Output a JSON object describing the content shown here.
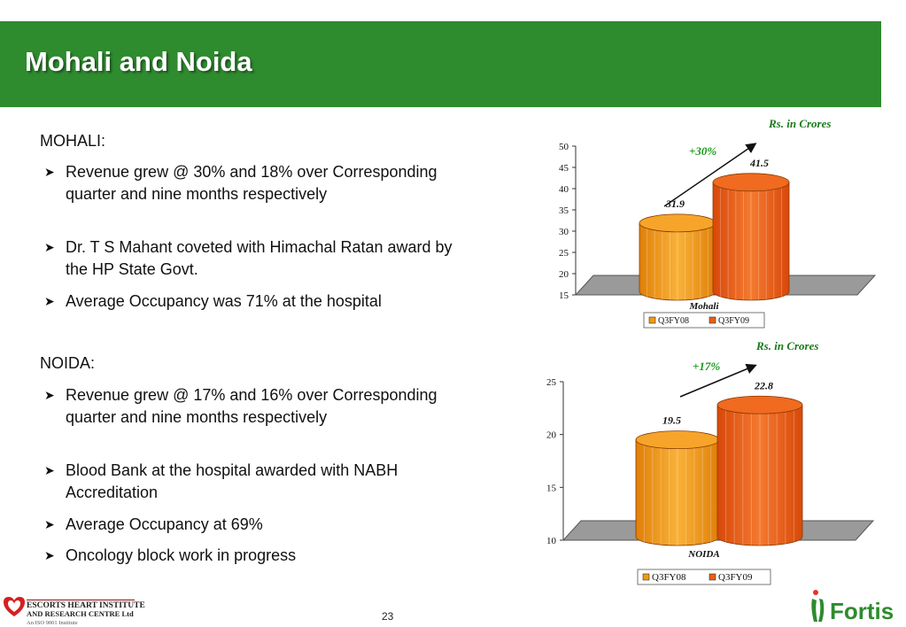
{
  "slide": {
    "title": "Mohali and Noida",
    "page_number": "23"
  },
  "mohali": {
    "heading": "MOHALI:",
    "bullets": [
      "Revenue grew @ 30% and 18% over Corresponding quarter and nine months respectively",
      "Dr. T S Mahant  coveted with Himachal Ratan award by the HP State Govt.",
      "Average Occupancy was 71% at the hospital"
    ]
  },
  "noida": {
    "heading": "NOIDA:",
    "bullets": [
      "Revenue grew @ 17% and 16% over Corresponding quarter and nine months respectively",
      "Blood Bank at the hospital awarded with NABH Accreditation",
      "Average Occupancy at 69%",
      "Oncology block work in progress"
    ]
  },
  "footer": {
    "left_logo_line1": "ESCORTS HEART INSTITUTE",
    "left_logo_line2": "AND RESEARCH CENTRE Ltd",
    "left_logo_line3": "An ISO 9001 Institute",
    "right_logo": "Fortis"
  },
  "colors": {
    "header_green": "#2e8b2e",
    "q3fy08": "#f39a12",
    "q3fy09": "#ee5d10",
    "label_green": "#1a7a1a"
  },
  "chart_data": [
    {
      "type": "bar",
      "units_note": "Rs. in Crores",
      "categories": [
        "Mohali"
      ],
      "series": [
        {
          "name": "Q3FY08",
          "values": [
            31.9
          ]
        },
        {
          "name": "Q3FY09",
          "values": [
            41.5
          ]
        }
      ],
      "value_labels": [
        "31.9",
        "41.5"
      ],
      "growth_label": "+30%",
      "ylim": [
        15,
        50
      ],
      "yticks": [
        "15",
        "20",
        "25",
        "30",
        "35",
        "40",
        "45",
        "50"
      ],
      "legend": "bottom"
    },
    {
      "type": "bar",
      "units_note": "Rs. in Crores",
      "categories": [
        "NOIDA"
      ],
      "series": [
        {
          "name": "Q3FY08",
          "values": [
            19.5
          ]
        },
        {
          "name": "Q3FY09",
          "values": [
            22.8
          ]
        }
      ],
      "value_labels": [
        "19.5",
        "22.8"
      ],
      "growth_label": "+17%",
      "ylim": [
        10,
        25
      ],
      "yticks": [
        "10",
        "15",
        "20",
        "25"
      ],
      "legend": "bottom"
    }
  ]
}
